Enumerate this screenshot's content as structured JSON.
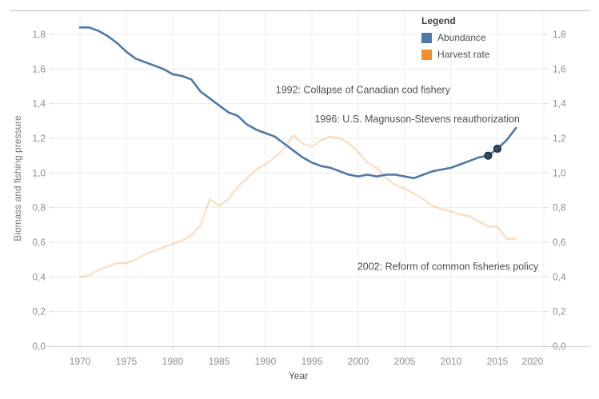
{
  "figure": {
    "y_axis_title": "Biomass and fishing pressure",
    "x_axis_title": "Year"
  },
  "legend": {
    "title": "Legend",
    "position": "top-right",
    "items": [
      {
        "label": "Abundance",
        "color": "#4e79a7"
      },
      {
        "label": "Harvest rate",
        "color": "#f28e2b"
      }
    ]
  },
  "chart_data": {
    "type": "line",
    "title": "",
    "xlabel": "Year",
    "ylabel": "Biomass and fishing pressure",
    "xlim": [
      1967.2,
      2020
    ],
    "ylim": [
      0,
      1.94
    ],
    "grid": true,
    "x_ticks": [
      1970,
      1975,
      1980,
      1985,
      1990,
      1995,
      2000,
      2005,
      2010,
      2015,
      2020
    ],
    "y_ticks": {
      "values": [
        0.0,
        0.2,
        0.4,
        0.6,
        0.8,
        1.0,
        1.2,
        1.4,
        1.6,
        1.8
      ],
      "labels": [
        "0,0",
        "0,2",
        "0,4",
        "0,6",
        "0,8",
        "1,0",
        "1,2",
        "1,4",
        "1,6",
        "1,8"
      ]
    },
    "years": [
      1970,
      1971,
      1972,
      1973,
      1974,
      1975,
      1976,
      1977,
      1978,
      1979,
      1980,
      1981,
      1982,
      1983,
      1984,
      1985,
      1986,
      1987,
      1988,
      1989,
      1990,
      1991,
      1992,
      1993,
      1994,
      1995,
      1996,
      1997,
      1998,
      1999,
      2000,
      2001,
      2002,
      2003,
      2004,
      2005,
      2006,
      2007,
      2008,
      2009,
      2010,
      2011,
      2012,
      2013,
      2014,
      2015,
      2016,
      2017
    ],
    "series": [
      {
        "name": "Abundance",
        "color": "#4e79a7",
        "line_width": 2.6,
        "opacity": 1,
        "values": [
          1.84,
          1.84,
          1.82,
          1.79,
          1.75,
          1.7,
          1.66,
          1.64,
          1.62,
          1.6,
          1.57,
          1.56,
          1.54,
          1.47,
          1.43,
          1.39,
          1.35,
          1.33,
          1.28,
          1.25,
          1.23,
          1.21,
          1.17,
          1.13,
          1.09,
          1.06,
          1.04,
          1.03,
          1.01,
          0.99,
          0.98,
          0.99,
          0.98,
          0.99,
          0.99,
          0.98,
          0.97,
          0.99,
          1.01,
          1.02,
          1.03,
          1.05,
          1.07,
          1.09,
          1.1,
          1.14,
          1.19,
          1.26
        ]
      },
      {
        "name": "Harvest rate",
        "color": "#f28e2b",
        "line_width": 2.2,
        "opacity": 0.3,
        "values": [
          0.4,
          0.41,
          0.44,
          0.46,
          0.48,
          0.48,
          0.5,
          0.53,
          0.55,
          0.57,
          0.59,
          0.61,
          0.64,
          0.7,
          0.85,
          0.81,
          0.85,
          0.92,
          0.97,
          1.02,
          1.05,
          1.09,
          1.14,
          1.22,
          1.17,
          1.15,
          1.19,
          1.21,
          1.2,
          1.17,
          1.12,
          1.06,
          1.03,
          0.97,
          0.93,
          0.91,
          0.88,
          0.85,
          0.81,
          0.79,
          0.78,
          0.76,
          0.75,
          0.72,
          0.69,
          0.69,
          0.62,
          0.62
        ]
      }
    ],
    "highlighted_points": {
      "series": "Abundance",
      "fill": "#2f4b68",
      "stroke": "#1b2e40",
      "points": [
        {
          "year": 2014,
          "value": 1.1
        },
        {
          "year": 2015,
          "value": 1.14
        }
      ]
    },
    "annotations": [
      {
        "text": "1992: Collapse of Canadian cod fishery",
        "x": 1991.1,
        "y": 1.48
      },
      {
        "text": "1996: U.S. Magnuson-Stevens reauthorization",
        "x": 1995.3,
        "y": 1.31
      },
      {
        "text": "2002: Reform of common fisheries policy",
        "x": 1999.9,
        "y": 0.46
      }
    ],
    "legend_position": "top-right"
  }
}
